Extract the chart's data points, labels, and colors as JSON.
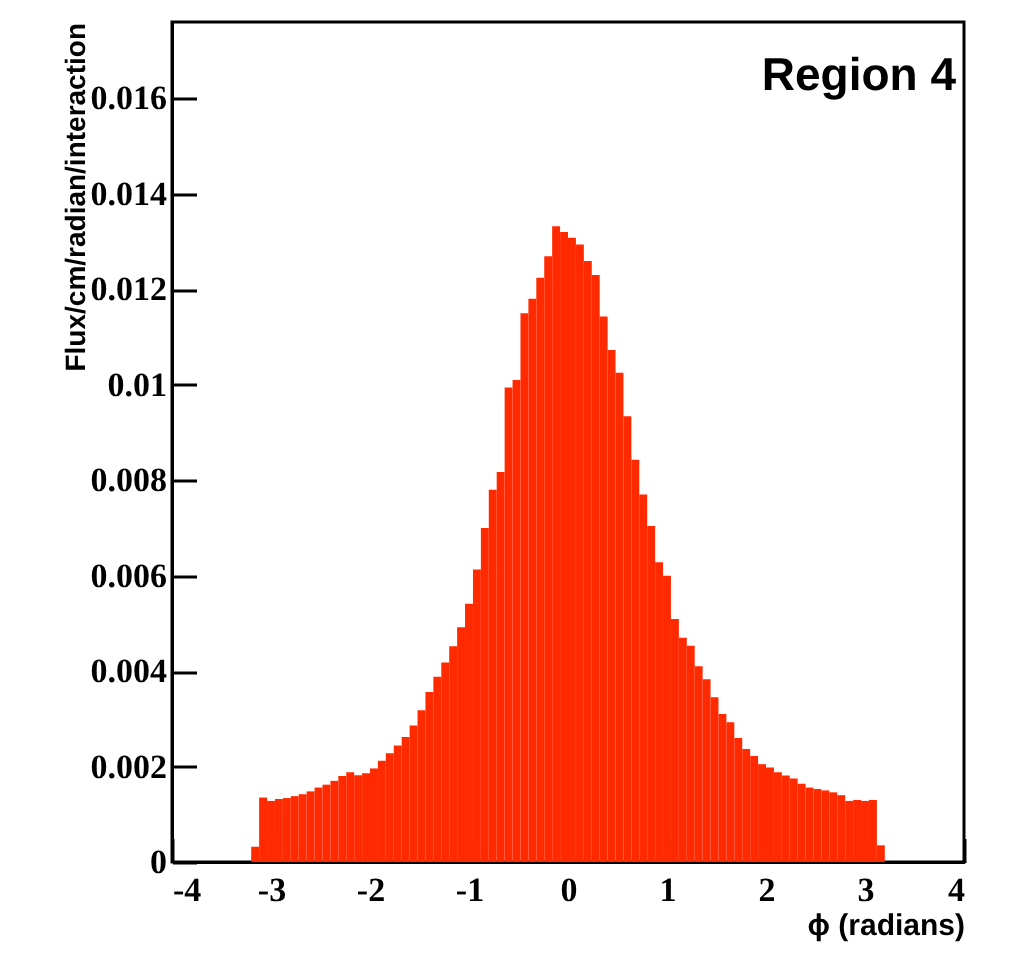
{
  "chart_data": {
    "type": "histogram",
    "xlabel": "ϕ (radians)",
    "ylabel": "Flux/cm/radian/interaction",
    "annotations": [
      "Region 4"
    ],
    "color": "#ff2a00",
    "xlim": [
      -4,
      4
    ],
    "xticks": [
      -4,
      -3,
      -2,
      -1,
      0,
      1,
      2,
      3,
      4
    ],
    "ylim": [
      0,
      0.0176
    ],
    "yticks": [
      0,
      0.002,
      0.004,
      0.006,
      0.008,
      0.01,
      0.012,
      0.014,
      0.016
    ],
    "bins": [
      -3.2,
      -3.12,
      -3.04,
      -2.96,
      -2.88,
      -2.8,
      -2.72,
      -2.64,
      -2.56,
      -2.48,
      -2.4,
      -2.32,
      -2.24,
      -2.16,
      -2.08,
      -2,
      -1.92,
      -1.84,
      -1.76,
      -1.68,
      -1.6,
      -1.52,
      -1.44,
      -1.36,
      -1.28,
      -1.2,
      -1.12,
      -1.04,
      -0.96,
      -0.88,
      -0.8,
      -0.72,
      -0.64,
      -0.56,
      -0.48,
      -0.4,
      -0.32,
      -0.24,
      -0.16,
      -0.08,
      0,
      0.08,
      0.16,
      0.24,
      0.32,
      0.4,
      0.48,
      0.56,
      0.64,
      0.72,
      0.8,
      0.88,
      0.96,
      1.04,
      1.12,
      1.2,
      1.28,
      1.36,
      1.44,
      1.52,
      1.6,
      1.68,
      1.76,
      1.84,
      1.92,
      2,
      2.08,
      2.16,
      2.24,
      2.32,
      2.4,
      2.48,
      2.56,
      2.64,
      2.72,
      2.8,
      2.88,
      2.96,
      3.04,
      3.12,
      3.2
    ],
    "values": [
      0.00032,
      0.00135,
      0.00128,
      0.00132,
      0.00134,
      0.00138,
      0.00142,
      0.00148,
      0.00156,
      0.00162,
      0.0017,
      0.0018,
      0.00188,
      0.00182,
      0.00186,
      0.00196,
      0.00212,
      0.00228,
      0.00244,
      0.00262,
      0.00286,
      0.00318,
      0.00356,
      0.00388,
      0.00418,
      0.00452,
      0.00492,
      0.00541,
      0.00613,
      0.007,
      0.0078,
      0.00817,
      0.00994,
      0.0101,
      0.0115,
      0.0118,
      0.01224,
      0.01269,
      0.01332,
      0.0132,
      0.01308,
      0.01294,
      0.01259,
      0.0123,
      0.01143,
      0.01073,
      0.01025,
      0.00934,
      0.00843,
      0.0077,
      0.00704,
      0.00628,
      0.006,
      0.00509,
      0.0047,
      0.00453,
      0.0041,
      0.00383,
      0.00345,
      0.0031,
      0.00293,
      0.0026,
      0.00237,
      0.00222,
      0.00205,
      0.00198,
      0.00188,
      0.00181,
      0.00175,
      0.00164,
      0.00156,
      0.00153,
      0.0015,
      0.00146,
      0.0014,
      0.00128,
      0.0013,
      0.00128,
      0.0013,
      0.00035
    ]
  }
}
